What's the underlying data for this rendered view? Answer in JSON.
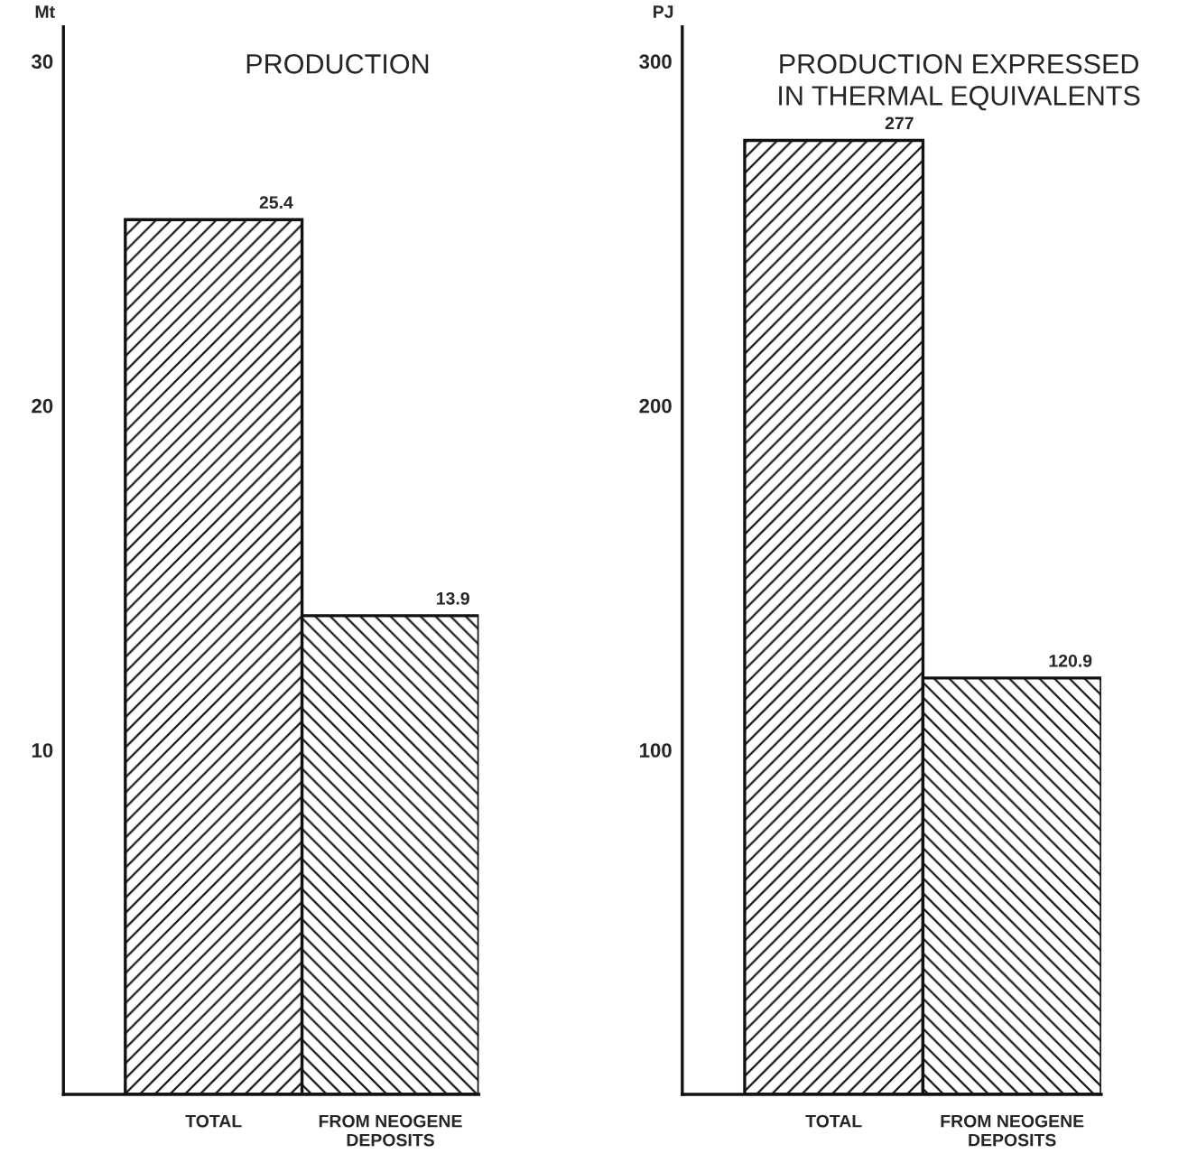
{
  "chart_data": [
    {
      "type": "bar",
      "title": "PRODUCTION",
      "ylabel": "Mt",
      "categories": [
        "TOTAL",
        "FROM NEOGENE\nDEPOSITS"
      ],
      "values": [
        25.4,
        13.9
      ],
      "colors": [
        "#111111",
        "#111111"
      ],
      "data_labels": true,
      "ylim": [
        0,
        31
      ],
      "yticks": [
        10,
        20,
        30
      ],
      "grid": false,
      "legend": false
    },
    {
      "type": "bar",
      "title": "PRODUCTION EXPRESSED\nIN THERMAL EQUIVALENTS",
      "ylabel": "PJ",
      "categories": [
        "TOTAL",
        "FROM NEOGENE\nDEPOSITS"
      ],
      "values": [
        277,
        120.9
      ],
      "colors": [
        "#111111",
        "#111111"
      ],
      "data_labels": true,
      "ylim": [
        0,
        310
      ],
      "yticks": [
        100,
        200,
        300
      ],
      "grid": false,
      "legend": false
    }
  ]
}
